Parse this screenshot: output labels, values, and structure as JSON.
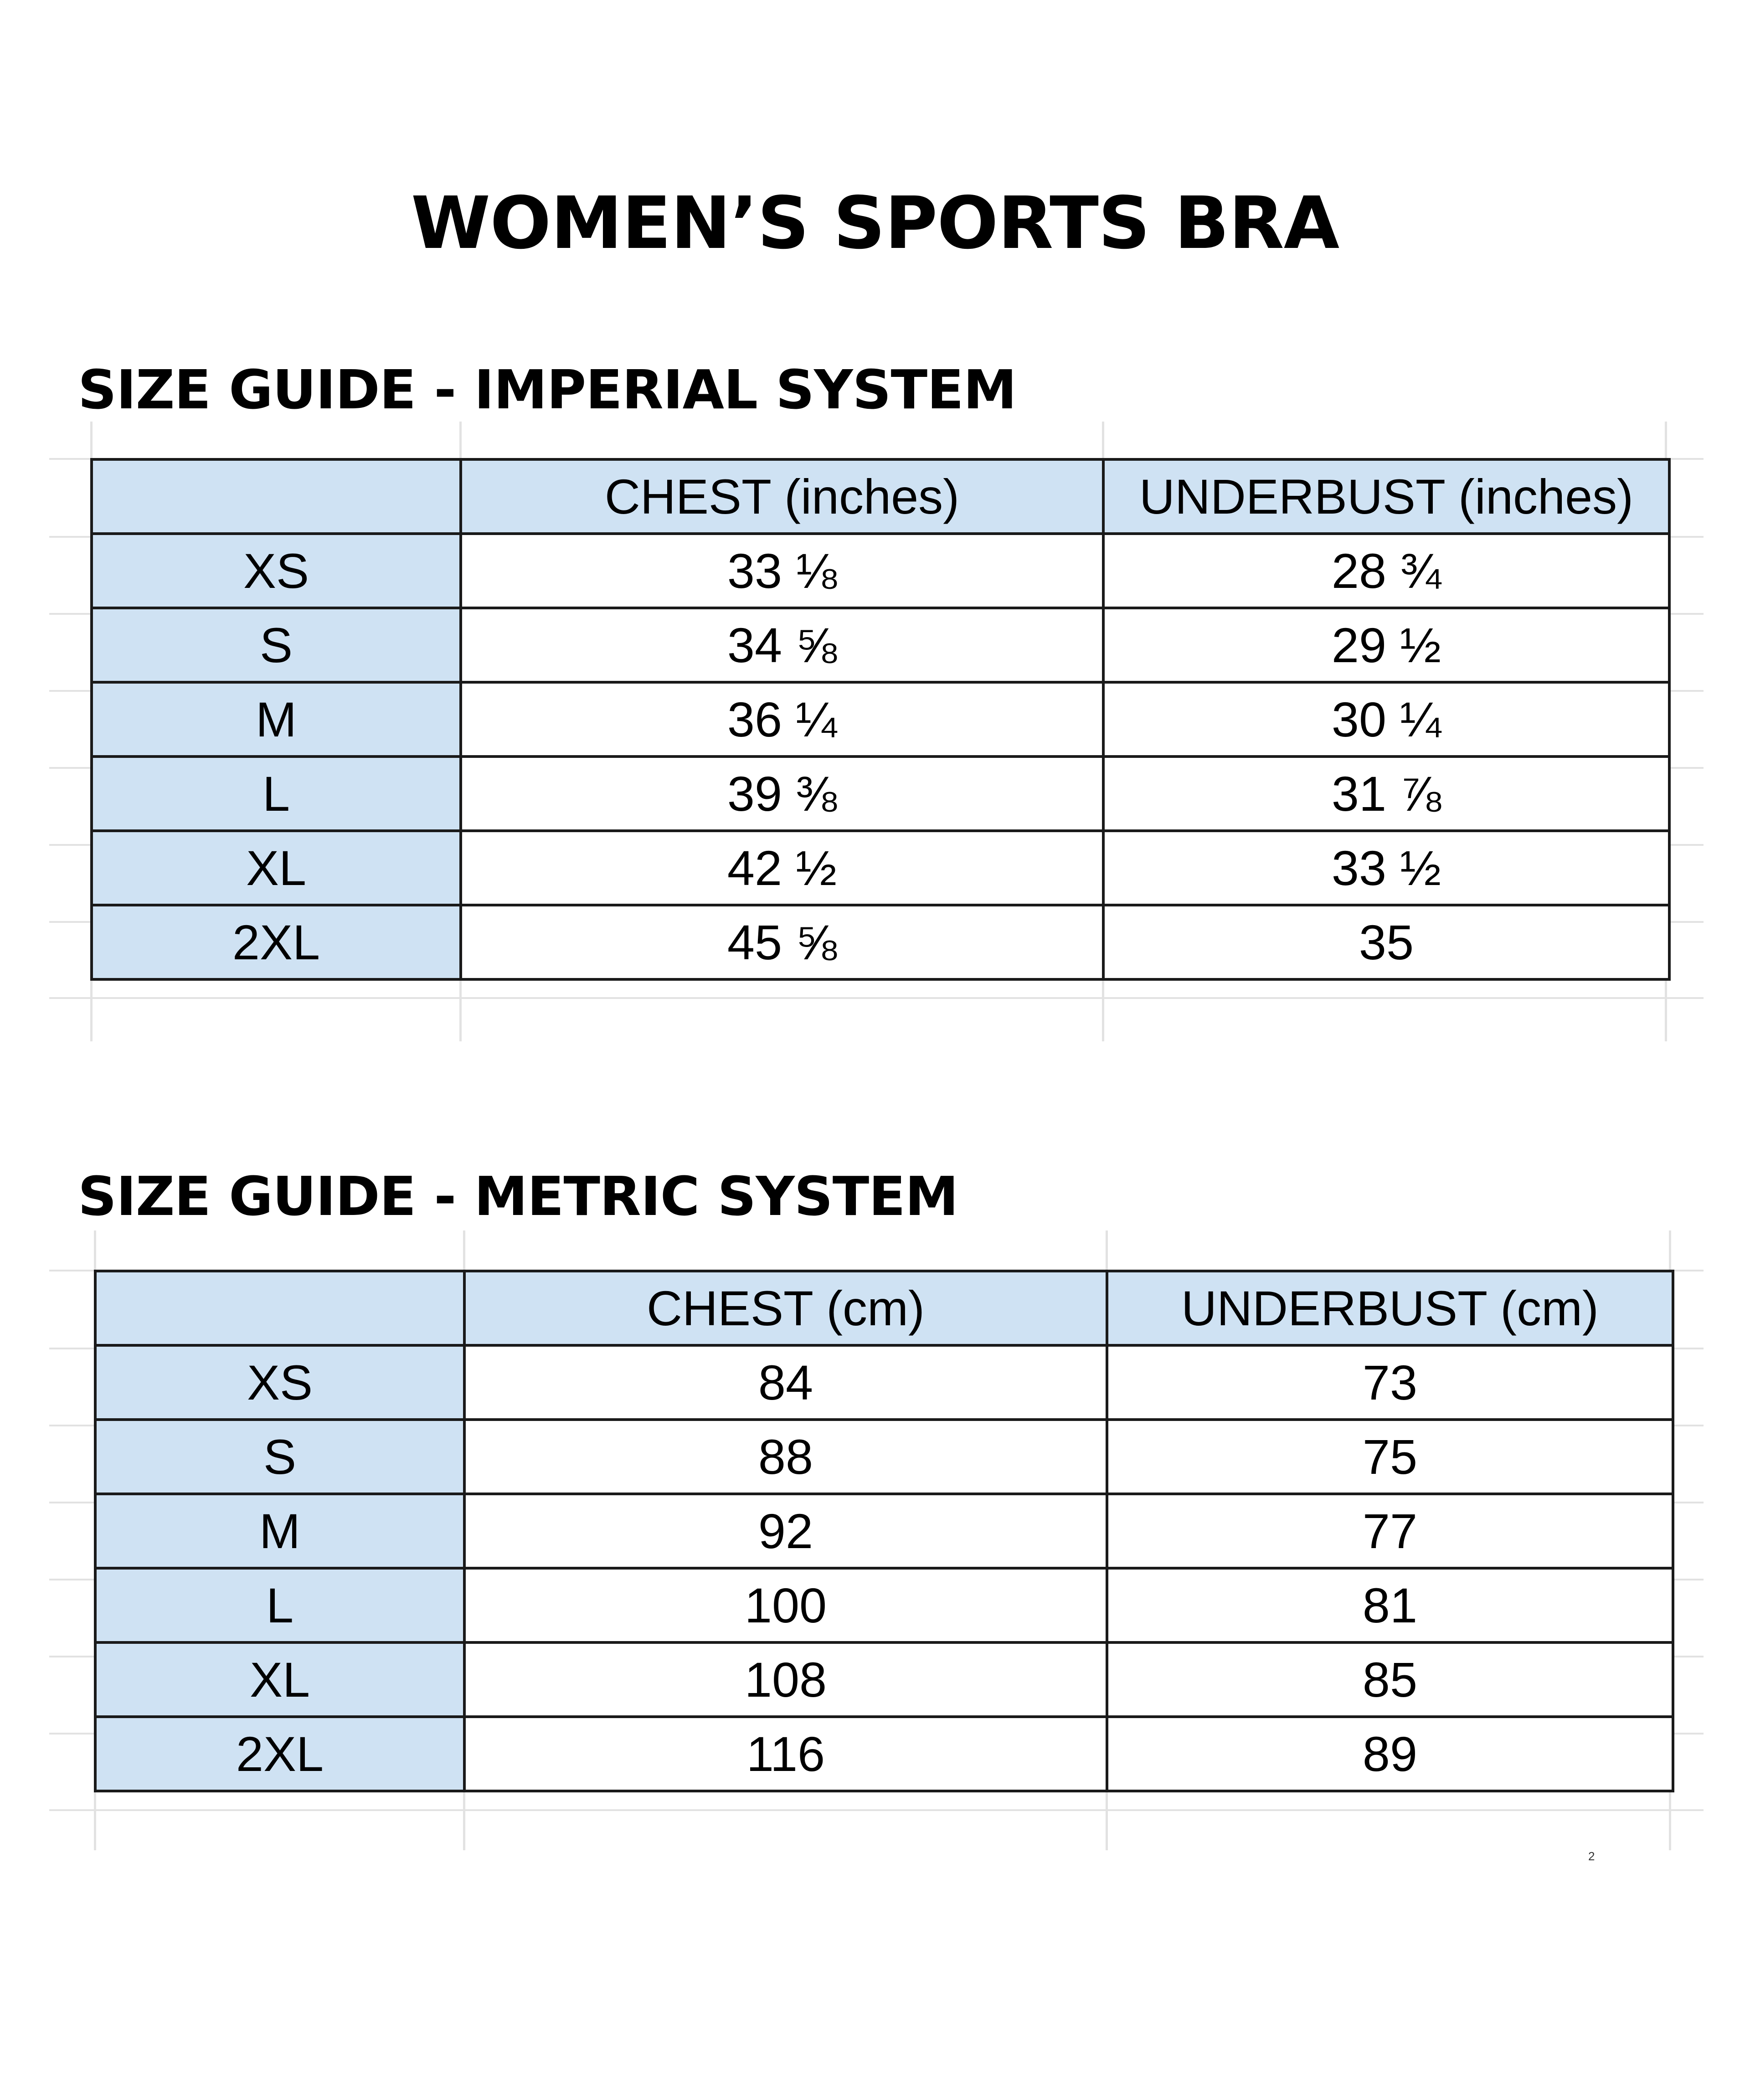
{
  "title": "WOMEN’S SPORTS BRA",
  "imperial": {
    "heading": "SIZE GUIDE - IMPERIAL SYSTEM",
    "columns": [
      "",
      "CHEST (inches)",
      "UNDERBUST (inches)"
    ],
    "rows": [
      {
        "size": "XS",
        "chest": "33 ⅛",
        "underbust": "28 ¾"
      },
      {
        "size": "S",
        "chest": "34 ⅝",
        "underbust": "29 ½"
      },
      {
        "size": "M",
        "chest": "36 ¼",
        "underbust": "30 ¼"
      },
      {
        "size": "L",
        "chest": "39 ⅜",
        "underbust": "31 ⅞"
      },
      {
        "size": "XL",
        "chest": "42 ½",
        "underbust": "33 ½"
      },
      {
        "size": "2XL",
        "chest": "45 ⅝",
        "underbust": "35"
      }
    ]
  },
  "metric": {
    "heading": "SIZE GUIDE - METRIC SYSTEM",
    "columns": [
      "",
      "CHEST (cm)",
      "UNDERBUST (cm)"
    ],
    "rows": [
      {
        "size": "XS",
        "chest": "84",
        "underbust": "73"
      },
      {
        "size": "S",
        "chest": "88",
        "underbust": "75"
      },
      {
        "size": "M",
        "chest": "92",
        "underbust": "77"
      },
      {
        "size": "L",
        "chest": "100",
        "underbust": "81"
      },
      {
        "size": "XL",
        "chest": "108",
        "underbust": "85"
      },
      {
        "size": "2XL",
        "chest": "116",
        "underbust": "89"
      }
    ]
  },
  "page_number": "2",
  "colors": {
    "header_fill": "#cfe2f3",
    "border": "#1a1a1a",
    "gridline": "#e2e2e2"
  }
}
